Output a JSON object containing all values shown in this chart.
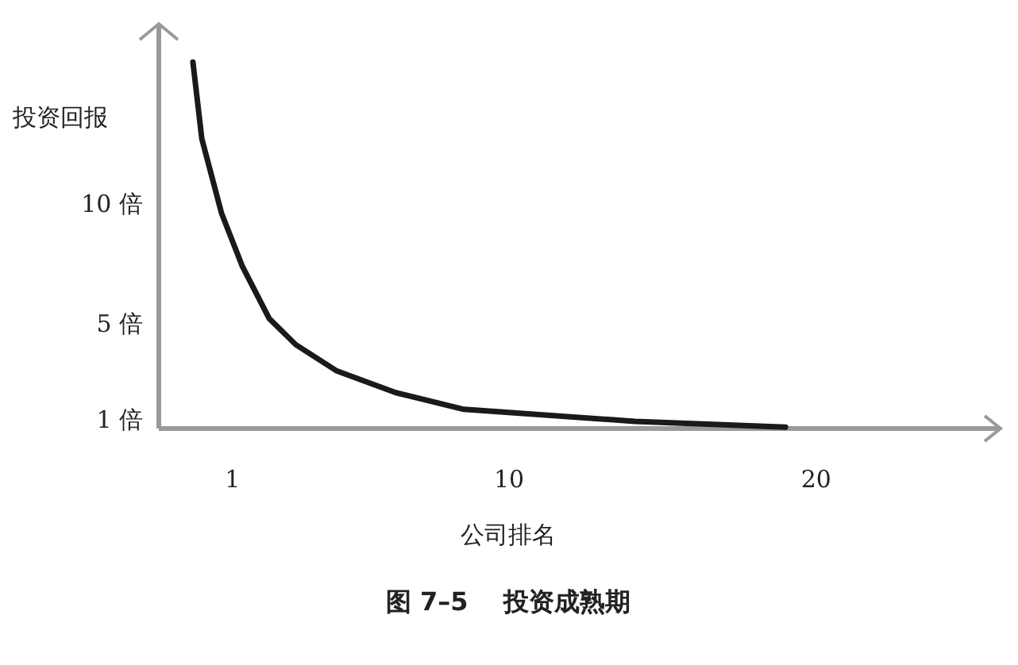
{
  "chart_data": {
    "type": "line",
    "title": "图 7–5    投资成熟期",
    "xlabel": "公司排名",
    "ylabel": "投资回报",
    "xlim": [
      -1.4,
      26
    ],
    "ylim": [
      0.7,
      17.6
    ],
    "xticks": [
      1,
      10,
      20
    ],
    "yticks": [
      {
        "value": 1,
        "label": "1 倍"
      },
      {
        "value": 5,
        "label": "5 倍"
      },
      {
        "value": 10,
        "label": "10 倍"
      }
    ],
    "series": [
      {
        "color": "#1a1a1a",
        "x": [
          -0.29,
          0.0,
          0.64,
          1.31,
          2.19,
          3.06,
          4.4,
          6.31,
          8.53,
          14.1,
          19.0
        ],
        "values": [
          16.0,
          12.8,
          9.7,
          7.5,
          5.3,
          4.2,
          3.1,
          2.2,
          1.5,
          1.0,
          0.76
        ]
      }
    ]
  }
}
